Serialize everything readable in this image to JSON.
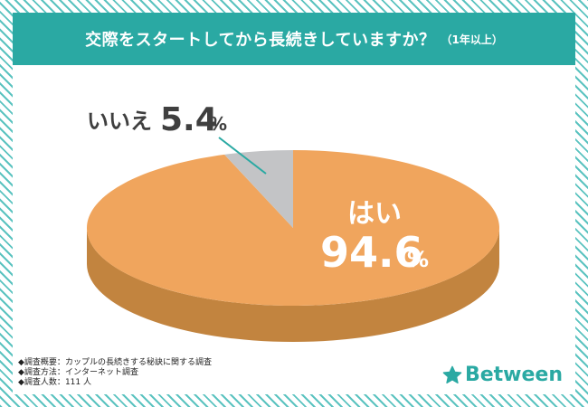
{
  "title": "交際をスタートしてから長続きしていますか？",
  "title_note": "（1年以上）",
  "chart_data": {
    "type": "pie",
    "labels": [
      "はい",
      "いいえ"
    ],
    "values": [
      94.6,
      5.4
    ],
    "value_labels": [
      "94.6",
      "5.4"
    ],
    "percent_symbol": "%",
    "colors": {
      "はい": "#f0a55d",
      "はい_side": "#c2843f",
      "いいえ": "#c3c4c6",
      "いいえ_side": "#8e8f91"
    }
  },
  "methodology": [
    {
      "label": "◆調査概要",
      "value": "カップルの長続きする秘訣に関する調査"
    },
    {
      "label": "◆調査方法",
      "value": "インターネット調査"
    },
    {
      "label": "◆調査人数",
      "value": "111 人"
    }
  ],
  "logo": {
    "text": "Between",
    "icon": "star-icon",
    "color": "#2aa9a3"
  },
  "colors": {
    "accent": "#2aa9a3",
    "stripe": "#5bc3c0"
  }
}
